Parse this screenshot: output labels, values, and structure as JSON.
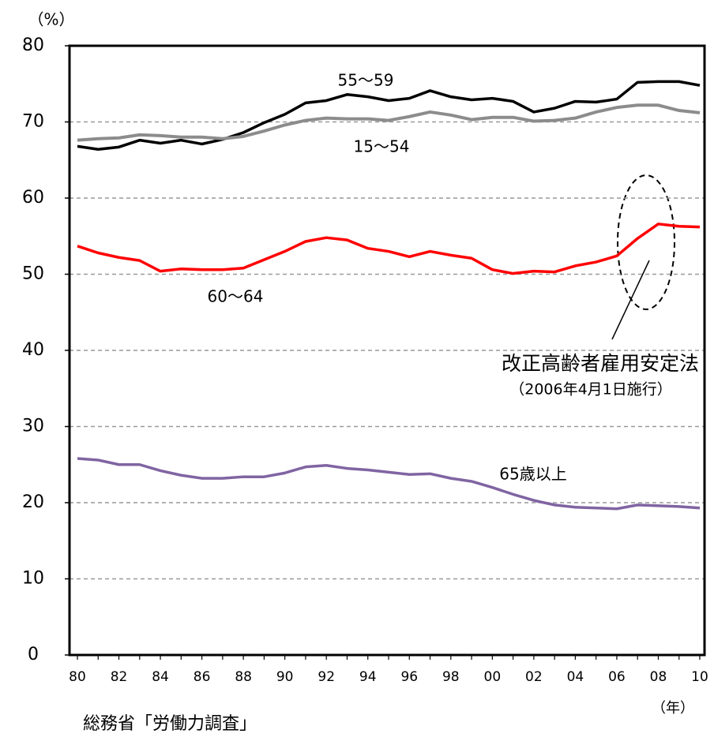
{
  "chart_data": {
    "type": "line",
    "unit_label": "（%）",
    "x_unit_label": "（年）",
    "source": "総務省「労働力調査」",
    "annotation": [
      "改正高齢者雇用安定法",
      "（2006年4月1日施行）"
    ],
    "categories": [
      "80",
      null,
      "82",
      null,
      "84",
      null,
      "86",
      null,
      "88",
      null,
      "90",
      null,
      "92",
      null,
      "94",
      null,
      "96",
      null,
      "98",
      null,
      "00",
      null,
      "02",
      null,
      "04",
      null,
      "06",
      null,
      "08",
      null,
      "10"
    ],
    "series": [
      {
        "name": "55〜59",
        "color": "#000000",
        "values": [
          66.8,
          66.4,
          66.7,
          67.6,
          67.2,
          67.6,
          67.1,
          67.7,
          68.6,
          69.9,
          71.0,
          72.5,
          72.8,
          73.6,
          73.3,
          72.8,
          73.1,
          74.1,
          73.3,
          72.9,
          73.1,
          72.7,
          71.3,
          71.8,
          72.7,
          72.6,
          73.0,
          75.2,
          75.3,
          75.3,
          74.8
        ]
      },
      {
        "name": "15〜54",
        "color": "#8c8c8c",
        "values": [
          67.6,
          67.8,
          67.9,
          68.3,
          68.2,
          68.0,
          68.0,
          67.8,
          68.1,
          68.8,
          69.6,
          70.2,
          70.5,
          70.4,
          70.4,
          70.2,
          70.7,
          71.3,
          70.9,
          70.3,
          70.6,
          70.6,
          70.1,
          70.2,
          70.5,
          71.3,
          71.9,
          72.2,
          72.2,
          71.5,
          71.2
        ]
      },
      {
        "name": "60〜64",
        "color": "#ff0000",
        "values": [
          53.7,
          52.8,
          52.2,
          51.8,
          50.4,
          50.7,
          50.6,
          50.6,
          50.8,
          51.9,
          53.0,
          54.3,
          54.8,
          54.5,
          53.4,
          53.0,
          52.3,
          53.0,
          52.5,
          52.1,
          50.6,
          50.1,
          50.4,
          50.3,
          51.1,
          51.6,
          52.4,
          54.7,
          56.6,
          56.3,
          56.2
        ]
      },
      {
        "name": "65歳以上",
        "color": "#8064a2",
        "values": [
          25.8,
          25.6,
          25.0,
          25.0,
          24.2,
          23.6,
          23.2,
          23.2,
          23.4,
          23.4,
          23.9,
          24.7,
          24.9,
          24.5,
          24.3,
          24.0,
          23.7,
          23.8,
          23.2,
          22.8,
          22.0,
          21.1,
          20.3,
          19.7,
          19.4,
          19.3,
          19.2,
          19.7,
          19.6,
          19.5,
          19.3
        ]
      }
    ],
    "ylim": [
      0,
      80
    ],
    "yticks": [
      0,
      10,
      20,
      30,
      40,
      50,
      60,
      70,
      80
    ],
    "grid": true
  }
}
